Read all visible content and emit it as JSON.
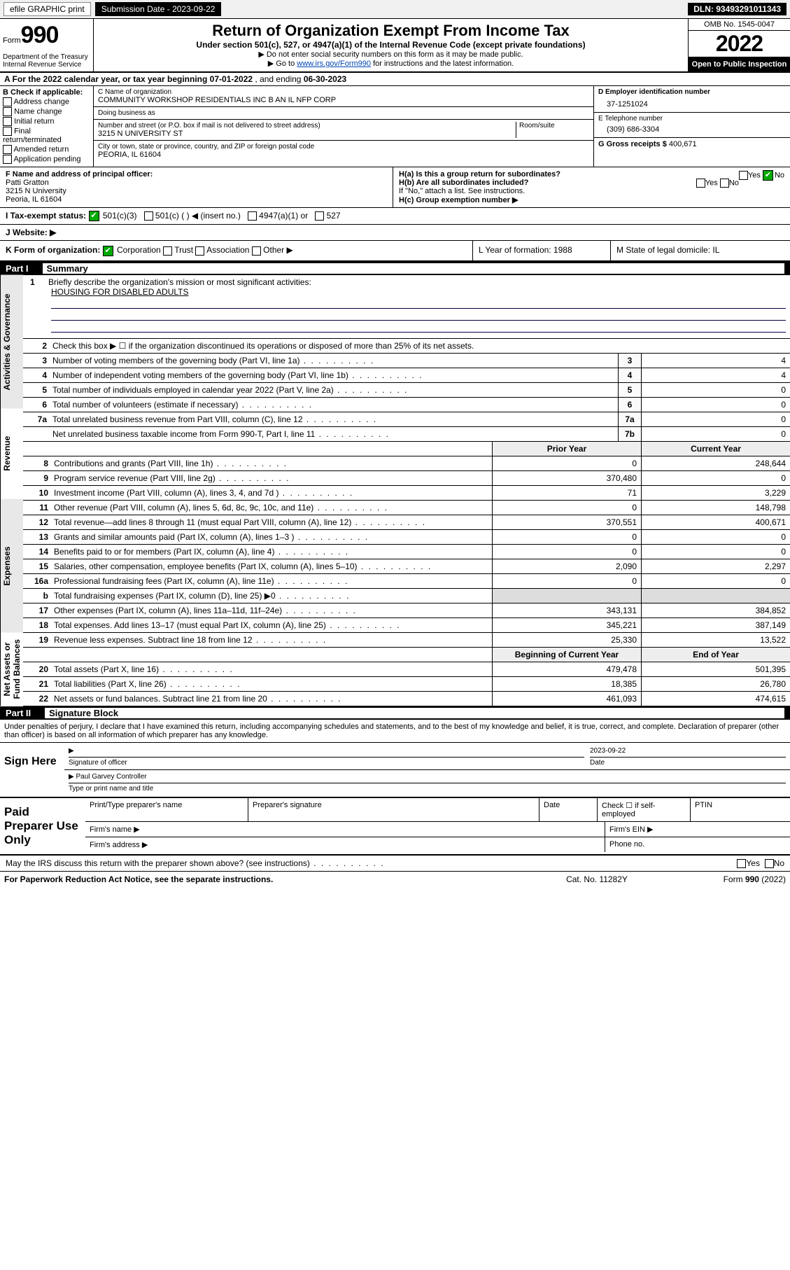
{
  "topbar": {
    "link1": "efile GRAPHIC print",
    "submission_label": "Submission Date - 2023-09-22",
    "dln": "DLN: 93493291011343"
  },
  "header": {
    "form_word": "Form",
    "form_num": "990",
    "dept": "Department of the Treasury\nInternal Revenue Service",
    "title": "Return of Organization Exempt From Income Tax",
    "sub1": "Under section 501(c), 527, or 4947(a)(1) of the Internal Revenue Code (except private foundations)",
    "sub2": "Do not enter social security numbers on this form as it may be made public.",
    "sub3": "Go to ",
    "sub3_link": "www.irs.gov/Form990",
    "sub3_tail": " for instructions and the latest information.",
    "omb": "OMB No. 1545-0047",
    "year": "2022",
    "inspect": "Open to Public Inspection"
  },
  "rowA": {
    "text_a": "A For the 2022 calendar year, or tax year beginning ",
    "begin": "07-01-2022",
    "text_mid": " , and ending ",
    "end": "06-30-2023"
  },
  "B": {
    "lbl": "B Check if applicable:",
    "items": [
      "Address change",
      "Name change",
      "Initial return",
      "Final return/terminated",
      "Amended return",
      "Application pending"
    ]
  },
  "C": {
    "name_lbl": "C Name of organization",
    "name": "COMMUNITY WORKSHOP RESIDENTIALS INC B AN IL NFP CORP",
    "dba_lbl": "Doing business as",
    "dba": "",
    "street_lbl": "Number and street (or P.O. box if mail is not delivered to street address)",
    "room_lbl": "Room/suite",
    "street": "3215 N UNIVERSITY ST",
    "city_lbl": "City or town, state or province, country, and ZIP or foreign postal code",
    "city": "PEORIA, IL  61604"
  },
  "D": {
    "lbl": "D Employer identification number",
    "val": "37-1251024"
  },
  "E": {
    "lbl": "E Telephone number",
    "val": "(309) 686-3304"
  },
  "G": {
    "lbl": "G Gross receipts $",
    "val": "400,671"
  },
  "F": {
    "lbl": "F Name and address of principal officer:",
    "name": "Patti Gratton",
    "addr1": "3215 N University",
    "addr2": "Peoria, IL  61604"
  },
  "H": {
    "a": "H(a)  Is this a group return for subordinates?",
    "a_yes": "Yes",
    "a_no": "No",
    "b": "H(b)  Are all subordinates included?",
    "b_tail": "If \"No,\" attach a list. See instructions.",
    "c": "H(c)  Group exemption number ▶"
  },
  "I": {
    "lbl": "I   Tax-exempt status:",
    "opt1": "501(c)(3)",
    "opt2": "501(c) (   ) ◀ (insert no.)",
    "opt3": "4947(a)(1) or",
    "opt4": "527"
  },
  "J": {
    "lbl": "J   Website: ▶",
    "val": ""
  },
  "K": {
    "lbl": "K Form of organization:",
    "o1": "Corporation",
    "o2": "Trust",
    "o3": "Association",
    "o4": "Other ▶",
    "L": "L Year of formation: 1988",
    "M": "M State of legal domicile: IL"
  },
  "part1": {
    "bar_num": "Part I",
    "bar_title": "Summary",
    "q1_lbl": "1",
    "q1": "Briefly describe the organization's mission or most significant activities:",
    "q1_val": "HOUSING FOR DISABLED ADULTS",
    "q2_lbl": "2",
    "q2": "Check this box ▶ ☐ if the organization discontinued its operations or disposed of more than 25% of its net assets.",
    "rows_box": [
      {
        "n": "3",
        "t": "Number of voting members of the governing body (Part VI, line 1a)",
        "b": "3",
        "v": "4"
      },
      {
        "n": "4",
        "t": "Number of independent voting members of the governing body (Part VI, line 1b)",
        "b": "4",
        "v": "4"
      },
      {
        "n": "5",
        "t": "Total number of individuals employed in calendar year 2022 (Part V, line 2a)",
        "b": "5",
        "v": "0"
      },
      {
        "n": "6",
        "t": "Total number of volunteers (estimate if necessary)",
        "b": "6",
        "v": "0"
      },
      {
        "n": "7a",
        "t": "Total unrelated business revenue from Part VIII, column (C), line 12",
        "b": "7a",
        "v": "0"
      },
      {
        "n": "",
        "t": "Net unrelated business taxable income from Form 990-T, Part I, line 11",
        "b": "7b",
        "v": "0"
      }
    ],
    "header_prior": "Prior Year",
    "header_curr": "Current Year",
    "rev": [
      {
        "n": "8",
        "t": "Contributions and grants (Part VIII, line 1h)",
        "p": "0",
        "c": "248,644"
      },
      {
        "n": "9",
        "t": "Program service revenue (Part VIII, line 2g)",
        "p": "370,480",
        "c": "0"
      },
      {
        "n": "10",
        "t": "Investment income (Part VIII, column (A), lines 3, 4, and 7d )",
        "p": "71",
        "c": "3,229"
      },
      {
        "n": "11",
        "t": "Other revenue (Part VIII, column (A), lines 5, 6d, 8c, 9c, 10c, and 11e)",
        "p": "0",
        "c": "148,798"
      },
      {
        "n": "12",
        "t": "Total revenue—add lines 8 through 11 (must equal Part VIII, column (A), line 12)",
        "p": "370,551",
        "c": "400,671"
      }
    ],
    "exp": [
      {
        "n": "13",
        "t": "Grants and similar amounts paid (Part IX, column (A), lines 1–3 )",
        "p": "0",
        "c": "0"
      },
      {
        "n": "14",
        "t": "Benefits paid to or for members (Part IX, column (A), line 4)",
        "p": "0",
        "c": "0"
      },
      {
        "n": "15",
        "t": "Salaries, other compensation, employee benefits (Part IX, column (A), lines 5–10)",
        "p": "2,090",
        "c": "2,297"
      },
      {
        "n": "16a",
        "t": "Professional fundraising fees (Part IX, column (A), line 11e)",
        "p": "0",
        "c": "0"
      },
      {
        "n": "b",
        "t": "Total fundraising expenses (Part IX, column (D), line 25) ▶0",
        "p": "",
        "c": "",
        "shade": true
      },
      {
        "n": "17",
        "t": "Other expenses (Part IX, column (A), lines 11a–11d, 11f–24e)",
        "p": "343,131",
        "c": "384,852"
      },
      {
        "n": "18",
        "t": "Total expenses. Add lines 13–17 (must equal Part IX, column (A), line 25)",
        "p": "345,221",
        "c": "387,149"
      },
      {
        "n": "19",
        "t": "Revenue less expenses. Subtract line 18 from line 12",
        "p": "25,330",
        "c": "13,522"
      }
    ],
    "bal_header_l": "Beginning of Current Year",
    "bal_header_r": "End of Year",
    "bal": [
      {
        "n": "20",
        "t": "Total assets (Part X, line 16)",
        "p": "479,478",
        "c": "501,395"
      },
      {
        "n": "21",
        "t": "Total liabilities (Part X, line 26)",
        "p": "18,385",
        "c": "26,780"
      },
      {
        "n": "22",
        "t": "Net assets or fund balances. Subtract line 21 from line 20",
        "p": "461,093",
        "c": "474,615"
      }
    ],
    "v_gov": "Activities & Governance",
    "v_rev": "Revenue",
    "v_exp": "Expenses",
    "v_bal": "Net Assets or Fund Balances"
  },
  "part2": {
    "bar_num": "Part II",
    "bar_title": "Signature Block",
    "decl": "Under penalties of perjury, I declare that I have examined this return, including accompanying schedules and statements, and to the best of my knowledge and belief, it is true, correct, and complete. Declaration of preparer (other than officer) is based on all information of which preparer has any knowledge.",
    "sign_here": "Sign Here",
    "sig_officer_lbl": "Signature of officer",
    "sig_date": "2023-09-22",
    "date_lbl": "Date",
    "name_title": "Paul Garvey  Controller",
    "name_title_lbl": "Type or print name and title",
    "paid": "Paid Preparer Use Only",
    "pp_name_lbl": "Print/Type preparer's name",
    "pp_sig_lbl": "Preparer's signature",
    "pp_date_lbl": "Date",
    "pp_check": "Check ☐ if self-employed",
    "pp_ptin": "PTIN",
    "firm_name": "Firm's name    ▶",
    "firm_ein": "Firm's EIN ▶",
    "firm_addr": "Firm's address ▶",
    "phone": "Phone no.",
    "may": "May the IRS discuss this return with the preparer shown above? (see instructions)",
    "yes": "Yes",
    "no": "No"
  },
  "footer": {
    "left": "For Paperwork Reduction Act Notice, see the separate instructions.",
    "center": "Cat. No. 11282Y",
    "right": "Form 990 (2022)"
  }
}
